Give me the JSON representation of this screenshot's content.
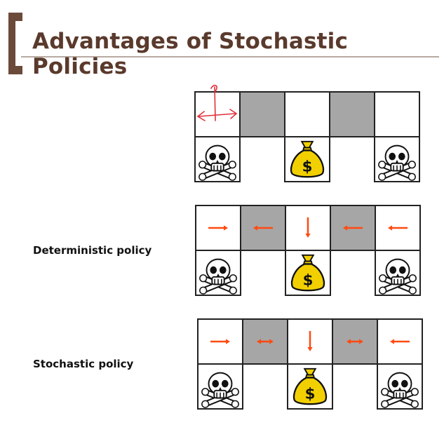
{
  "title": "Advantages of Stochastic Policies",
  "labels": {
    "deterministic": "Deterministic policy",
    "stochastic": "Stochastic policy"
  },
  "grids": [
    {
      "id": "grid-original",
      "top_row": [
        "white",
        "gray",
        "white",
        "gray",
        "white"
      ],
      "bottom_row": [
        "skull",
        null,
        "money-bag",
        null,
        "skull"
      ],
      "arrows": [
        "agent-marker",
        null,
        null,
        null,
        null
      ]
    },
    {
      "id": "grid-deterministic",
      "top_row": [
        "white",
        "gray",
        "white",
        "gray",
        "white"
      ],
      "bottom_row": [
        "skull",
        null,
        "money-bag",
        null,
        "skull"
      ],
      "arrows": [
        "right",
        "left",
        "down",
        "left",
        "left"
      ]
    },
    {
      "id": "grid-stochastic",
      "top_row": [
        "white",
        "gray",
        "white",
        "gray",
        "white"
      ],
      "bottom_row": [
        "skull",
        null,
        "money-bag",
        null,
        "skull"
      ],
      "arrows": [
        "right",
        "left-right",
        "down",
        "left-right",
        "left"
      ]
    }
  ],
  "colors": {
    "arrow": "#ff4a10",
    "gray_cell": "#a6a6a6",
    "title": "#5a3a2c",
    "bracket": "#6b4a3a",
    "marker": "#e0303a"
  },
  "icons": {
    "skull": "skull-crossbones-icon",
    "money": "money-bag-dollar-icon"
  },
  "money_symbol": "$"
}
